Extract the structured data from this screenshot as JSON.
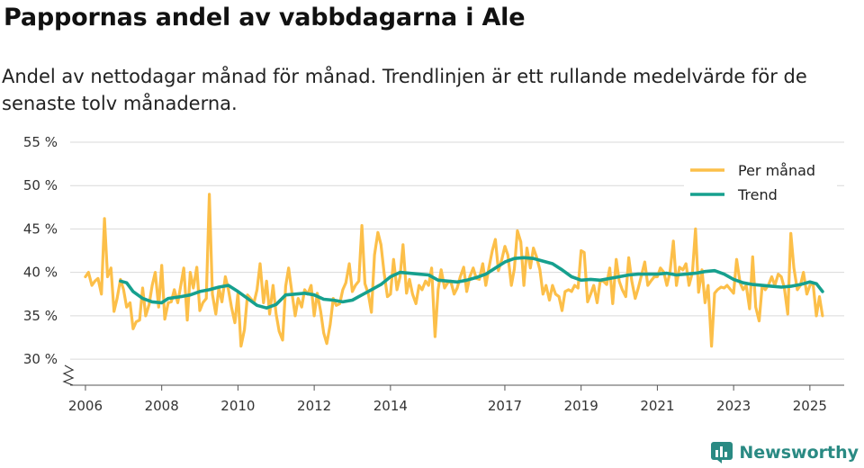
{
  "header": {
    "title": "Pappornas andel av vabbdagarna i Ale",
    "subtitle": "Andel av nettodagar månad för månad. Trendlinjen är ett rullande medelvärde för de senaste tolv månaderna."
  },
  "brand": {
    "name": "Newsworthy",
    "color": "#2a8a83"
  },
  "chart_data": {
    "type": "line",
    "title": "Pappornas andel av vabbdagarna i Ale",
    "xlabel": "",
    "ylabel": "",
    "ylim": [
      27,
      55
    ],
    "xlim": [
      2005.6,
      2025.9
    ],
    "y_ticks": [
      30,
      35,
      40,
      45,
      50,
      55
    ],
    "y_tick_labels": [
      "30 %",
      "35 %",
      "40 %",
      "45 %",
      "50 %",
      "55 %"
    ],
    "x_ticks": [
      2006,
      2008,
      2010,
      2012,
      2014,
      2017,
      2019,
      2021,
      2023,
      2025
    ],
    "x_tick_labels": [
      "2006",
      "2008",
      "2010",
      "2012",
      "2014",
      "2017",
      "2019",
      "2021",
      "2023",
      "2025"
    ],
    "axis_break": true,
    "grid": true,
    "legend_position": "top-right",
    "series": [
      {
        "name": "Per månad",
        "color": "#fcbf49",
        "x": [
          2006.0,
          2006.08,
          2006.17,
          2006.25,
          2006.33,
          2006.42,
          2006.5,
          2006.58,
          2006.67,
          2006.75,
          2006.83,
          2006.92,
          2007.0,
          2007.08,
          2007.17,
          2007.25,
          2007.33,
          2007.42,
          2007.5,
          2007.58,
          2007.67,
          2007.75,
          2007.83,
          2007.92,
          2008.0,
          2008.08,
          2008.17,
          2008.25,
          2008.33,
          2008.42,
          2008.5,
          2008.58,
          2008.67,
          2008.75,
          2008.83,
          2008.92,
          2009.0,
          2009.08,
          2009.17,
          2009.25,
          2009.33,
          2009.42,
          2009.5,
          2009.58,
          2009.67,
          2009.75,
          2009.83,
          2009.92,
          2010.0,
          2010.08,
          2010.17,
          2010.25,
          2010.33,
          2010.42,
          2010.5,
          2010.58,
          2010.67,
          2010.75,
          2010.83,
          2010.92,
          2011.0,
          2011.08,
          2011.17,
          2011.25,
          2011.33,
          2011.42,
          2011.5,
          2011.58,
          2011.67,
          2011.75,
          2011.83,
          2011.92,
          2012.0,
          2012.08,
          2012.17,
          2012.25,
          2012.33,
          2012.42,
          2012.5,
          2012.58,
          2012.67,
          2012.75,
          2012.83,
          2012.92,
          2013.0,
          2013.08,
          2013.17,
          2013.25,
          2013.33,
          2013.42,
          2013.5,
          2013.58,
          2013.67,
          2013.75,
          2013.83,
          2013.92,
          2014.0,
          2014.08,
          2014.17,
          2014.25,
          2014.33,
          2014.42,
          2014.5,
          2014.58,
          2014.67,
          2014.75,
          2014.83,
          2014.92,
          2015.0,
          2015.08,
          2015.17,
          2015.25,
          2015.33,
          2015.42,
          2015.5,
          2015.58,
          2015.67,
          2015.75,
          2015.83,
          2015.92,
          2016.0,
          2016.08,
          2016.17,
          2016.25,
          2016.33,
          2016.42,
          2016.5,
          2016.58,
          2016.67,
          2016.75,
          2016.83,
          2016.92,
          2017.0,
          2017.08,
          2017.17,
          2017.25,
          2017.33,
          2017.42,
          2017.5,
          2017.58,
          2017.67,
          2017.75,
          2017.83,
          2017.92,
          2018.0,
          2018.08,
          2018.17,
          2018.25,
          2018.33,
          2018.42,
          2018.5,
          2018.58,
          2018.67,
          2018.75,
          2018.83,
          2018.92,
          2019.0,
          2019.08,
          2019.17,
          2019.25,
          2019.33,
          2019.42,
          2019.5,
          2019.58,
          2019.67,
          2019.75,
          2019.83,
          2019.92,
          2020.0,
          2020.08,
          2020.17,
          2020.25,
          2020.33,
          2020.42,
          2020.5,
          2020.58,
          2020.67,
          2020.75,
          2020.83,
          2020.92,
          2021.0,
          2021.08,
          2021.17,
          2021.25,
          2021.33,
          2021.42,
          2021.5,
          2021.58,
          2021.67,
          2021.75,
          2021.83,
          2021.92,
          2022.0,
          2022.08,
          2022.17,
          2022.25,
          2022.33,
          2022.42,
          2022.5,
          2022.58,
          2022.67,
          2022.75,
          2022.83,
          2022.92,
          2023.0,
          2023.08,
          2023.17,
          2023.25,
          2023.33,
          2023.42,
          2023.5,
          2023.58,
          2023.67,
          2023.75,
          2023.83,
          2023.92,
          2024.0,
          2024.08,
          2024.17,
          2024.25,
          2024.33,
          2024.42,
          2024.5,
          2024.58,
          2024.67,
          2024.75,
          2024.83,
          2024.92,
          2025.0,
          2025.08,
          2025.17,
          2025.25,
          2025.33
        ],
        "values": [
          39.5,
          40,
          38.5,
          39,
          39.3,
          37.5,
          46.2,
          39.5,
          40.5,
          35.5,
          37,
          39.2,
          38,
          36,
          36.5,
          33.5,
          34.3,
          34.5,
          38.2,
          35,
          36.3,
          38.5,
          40,
          36,
          40.8,
          34.6,
          36.5,
          36.6,
          38,
          36.5,
          38.5,
          40.5,
          34.5,
          40,
          38.2,
          40.6,
          35.6,
          36.5,
          37,
          49,
          37.5,
          35.2,
          38.2,
          36.6,
          39.5,
          38,
          36,
          34.2,
          37.6,
          31.5,
          33.4,
          37.4,
          37,
          36.5,
          38,
          41,
          36.5,
          39,
          35.2,
          38.5,
          35.2,
          33.2,
          32.2,
          38.4,
          40.5,
          37.5,
          35,
          37,
          36,
          38,
          37.5,
          38.5,
          35,
          37.6,
          35.5,
          33,
          31.8,
          34,
          37,
          36.2,
          36.4,
          38,
          38.8,
          41,
          37.8,
          38.5,
          39,
          45.4,
          38.7,
          37.5,
          35.4,
          42,
          44.6,
          43.2,
          40,
          37.2,
          37.5,
          41.5,
          38,
          39.5,
          43.2,
          37.6,
          39.2,
          37.5,
          36.4,
          38.5,
          38,
          39,
          38.5,
          40.5,
          32.6,
          38,
          40.3,
          38.2,
          38.8,
          39,
          37.5,
          38.2,
          39.5,
          40.6,
          37.8,
          39.5,
          40.5,
          39.3,
          39.2,
          41,
          38.5,
          40.5,
          42.5,
          43.8,
          40.2,
          41.5,
          43,
          42,
          38.5,
          40.4,
          44.8,
          43.5,
          38.5,
          42.8,
          40.5,
          42.8,
          41.8,
          40.3,
          37.5,
          38.5,
          36.8,
          38.5,
          37.5,
          37.2,
          35.6,
          37.8,
          38,
          37.8,
          38.5,
          38.2,
          42.5,
          42.3,
          36.6,
          37.5,
          38.5,
          36.5,
          39,
          39,
          38.6,
          40.5,
          36.4,
          41.5,
          39,
          38,
          37.2,
          41.7,
          39,
          37,
          38.2,
          39.6,
          41.2,
          38.5,
          39,
          39.5,
          39.5,
          40.5,
          40,
          38.5,
          40,
          43.6,
          38.5,
          40.6,
          40.3,
          41,
          38.5,
          40,
          45,
          37.7,
          40.3,
          36.5,
          38.5,
          31.5,
          37.6,
          38,
          38.3,
          38.2,
          38.5,
          38,
          37.6,
          41.5,
          38.8,
          38,
          38.5,
          35.8,
          41.8,
          36,
          34.4,
          38.5,
          38,
          38.6,
          39.5,
          38.5,
          39.8,
          39.5,
          38.2,
          35.2,
          44.5,
          40.5,
          38,
          38.5,
          40,
          37.5,
          38.5,
          38.8,
          35,
          37.2,
          35
        ]
      },
      {
        "name": "Trend",
        "color": "#16a08e",
        "x": [
          2006.92,
          2007.08,
          2007.25,
          2007.5,
          2007.75,
          2008.0,
          2008.17,
          2008.5,
          2008.75,
          2009.0,
          2009.25,
          2009.5,
          2009.75,
          2010.0,
          2010.25,
          2010.5,
          2010.75,
          2011.0,
          2011.25,
          2011.5,
          2011.75,
          2012.0,
          2012.25,
          2012.5,
          2012.75,
          2013.0,
          2013.25,
          2013.5,
          2013.75,
          2014.0,
          2014.25,
          2014.5,
          2014.75,
          2015.0,
          2015.25,
          2015.5,
          2015.75,
          2016.0,
          2016.25,
          2016.5,
          2016.75,
          2017.0,
          2017.25,
          2017.5,
          2017.75,
          2018.0,
          2018.25,
          2018.5,
          2018.75,
          2019.0,
          2019.25,
          2019.5,
          2019.75,
          2020.0,
          2020.25,
          2020.5,
          2020.75,
          2021.0,
          2021.25,
          2021.5,
          2021.75,
          2022.0,
          2022.25,
          2022.5,
          2022.75,
          2023.0,
          2023.25,
          2023.5,
          2023.75,
          2024.0,
          2024.25,
          2024.5,
          2024.75,
          2025.0,
          2025.17,
          2025.33
        ],
        "values": [
          39,
          38.8,
          37.8,
          37,
          36.6,
          36.5,
          37,
          37.2,
          37.4,
          37.8,
          38,
          38.3,
          38.5,
          37.8,
          37,
          36.2,
          35.9,
          36.3,
          37.4,
          37.5,
          37.6,
          37.4,
          36.9,
          36.8,
          36.6,
          36.8,
          37.4,
          38,
          38.6,
          39.5,
          40,
          39.9,
          39.8,
          39.7,
          39.1,
          39.0,
          38.9,
          39.1,
          39.4,
          39.8,
          40.5,
          41.2,
          41.6,
          41.7,
          41.6,
          41.3,
          41,
          40.3,
          39.5,
          39.1,
          39.2,
          39.1,
          39.3,
          39.5,
          39.7,
          39.8,
          39.8,
          39.8,
          39.9,
          39.7,
          39.8,
          39.9,
          40.1,
          40.2,
          39.8,
          39.2,
          38.8,
          38.6,
          38.5,
          38.4,
          38.3,
          38.4,
          38.6,
          38.9,
          38.7,
          37.8
        ]
      }
    ]
  }
}
